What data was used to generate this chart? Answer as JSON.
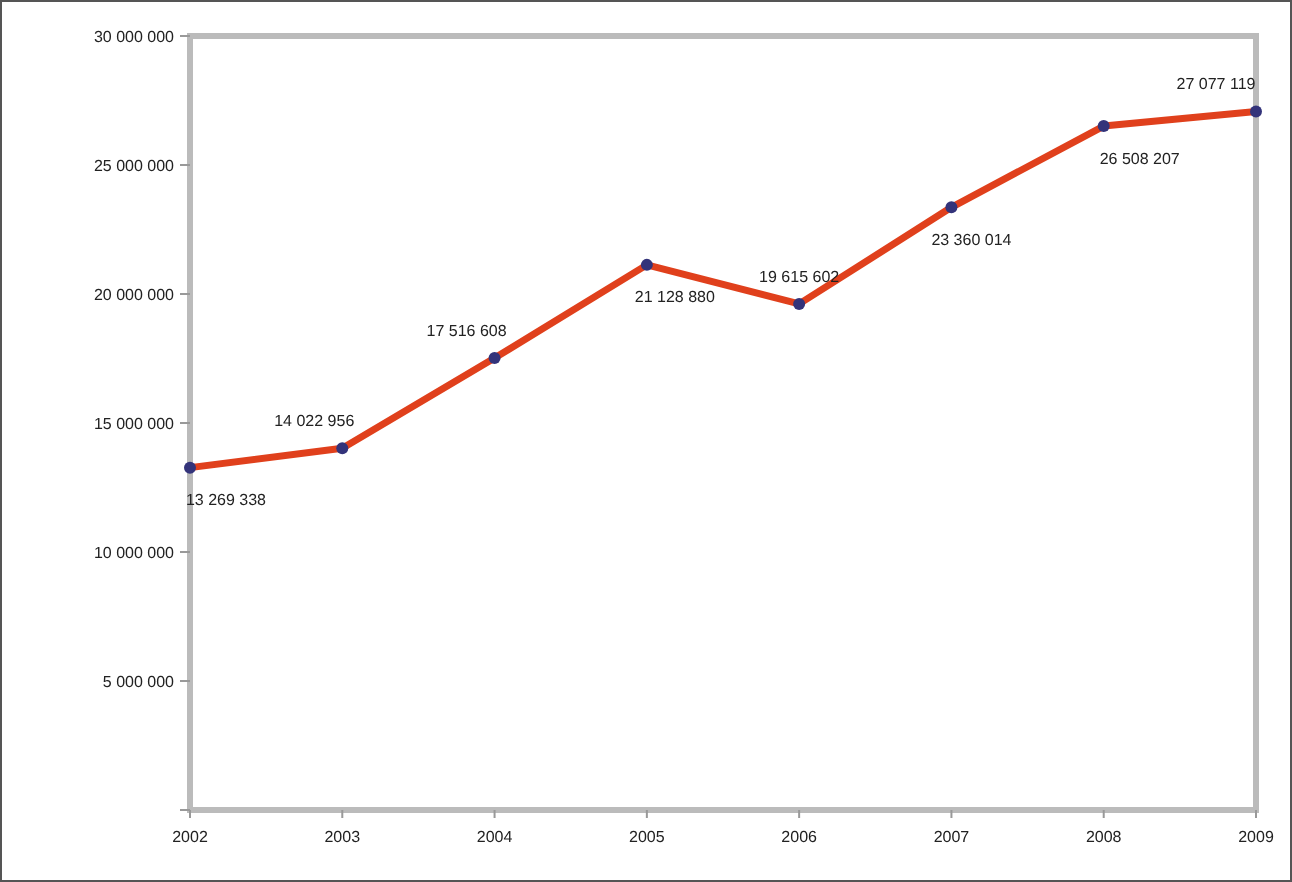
{
  "chart_data": {
    "type": "line",
    "categories": [
      "2002",
      "2003",
      "2004",
      "2005",
      "2006",
      "2007",
      "2008",
      "2009"
    ],
    "series": [
      {
        "color": "#e0401c",
        "values": [
          13269338,
          14022956,
          17516608,
          21128880,
          19615602,
          23360014,
          26508207,
          27077119
        ]
      }
    ],
    "value_labels": [
      "13 269 338",
      "14 022 956",
      "17 516 608",
      "21 128 880",
      "19 615 602",
      "23 360 014",
      "26 508 207",
      "27 077 119"
    ],
    "ylim": [
      0,
      30000000
    ],
    "yticks": [
      {
        "value": 0,
        "label": null
      },
      {
        "value": 5000000,
        "label": "5 000 000"
      },
      {
        "value": 10000000,
        "label": "10 000 000"
      },
      {
        "value": 15000000,
        "label": "15 000 000"
      },
      {
        "value": 20000000,
        "label": "20 000 000"
      },
      {
        "value": 25000000,
        "label": "25 000 000"
      },
      {
        "value": 30000000,
        "label": "30 000 000"
      }
    ],
    "marker": "circle",
    "line_style": "solid"
  }
}
